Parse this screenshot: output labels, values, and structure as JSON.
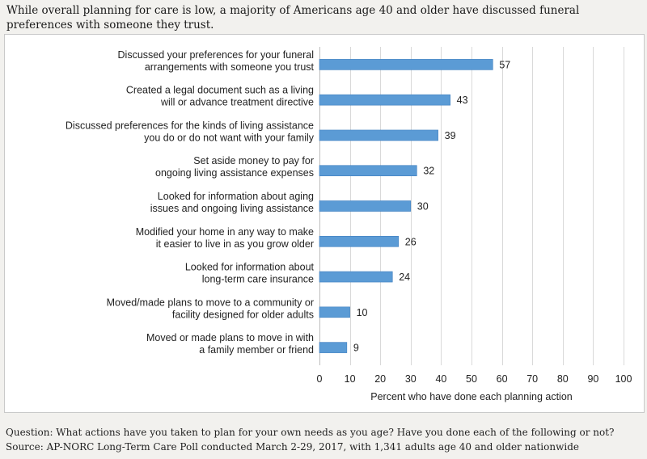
{
  "header": {
    "title": "While overall planning for care is low, a majority of Americans age 40 and older have discussed funeral preferences with someone they trust."
  },
  "footer": {
    "question": "Question: What actions have you taken to plan for your own needs as you age? Have you done each of the following or not?",
    "source": "Source: AP-NORC Long-Term Care Poll conducted March 2-29, 2017, with 1,341 adults age 40 and older nationwide"
  },
  "chart_data": {
    "type": "bar",
    "orientation": "horizontal",
    "bar_color": "#5b9bd5",
    "categories": [
      [
        "Discussed your preferences for your funeral",
        "arrangements with someone you trust"
      ],
      [
        "Created a legal document such as a living",
        "will or advance treatment directive"
      ],
      [
        "Discussed preferences for the kinds of living assistance",
        "you do or do not want with your family"
      ],
      [
        "Set aside money to pay for",
        "ongoing living assistance expenses"
      ],
      [
        "Looked for information about aging",
        "issues and ongoing living assistance"
      ],
      [
        "Modified your home in any way to make",
        "it easier to live in as you grow older"
      ],
      [
        "Looked for information about",
        "long-term care insurance"
      ],
      [
        "Moved/made plans to move to a community or",
        "facility designed for older adults"
      ],
      [
        "Moved or made plans to move in with",
        "a family member or friend"
      ]
    ],
    "values": [
      57,
      43,
      39,
      32,
      30,
      26,
      24,
      10,
      9
    ],
    "xlabel": "Percent who have done each planning action",
    "xlim": [
      0,
      100
    ],
    "xticks": [
      0,
      10,
      20,
      30,
      40,
      50,
      60,
      70,
      80,
      90,
      100
    ],
    "grid": "vertical"
  }
}
